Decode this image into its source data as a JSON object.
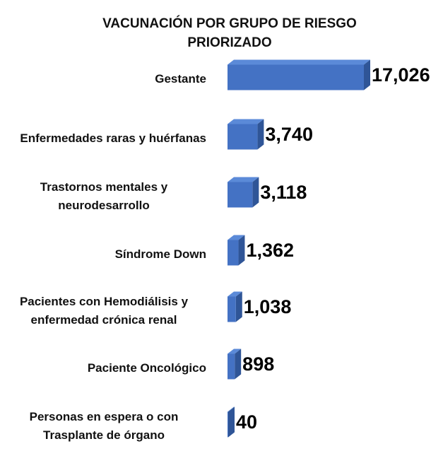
{
  "chart_data": {
    "type": "bar",
    "orientation": "horizontal",
    "title": "VACUNACIÓN POR GRUPO DE RIESGO PRIORIZADO",
    "categories": [
      "Gestante",
      "Enfermedades raras y huérfanas",
      "Trastornos mentales y neurodesarrollo",
      "Síndrome Down",
      "Pacientes con Hemodiálisis y enfermedad crónica renal",
      "Paciente Oncológico",
      "Personas en espera o con Trasplante de órgano"
    ],
    "values": [
      17026,
      3740,
      3118,
      1362,
      1038,
      898,
      40
    ],
    "value_labels": [
      "17,026",
      "3,740",
      "3,118",
      "1,362",
      "1,038",
      "898",
      "40"
    ],
    "color": "#4472c4"
  }
}
